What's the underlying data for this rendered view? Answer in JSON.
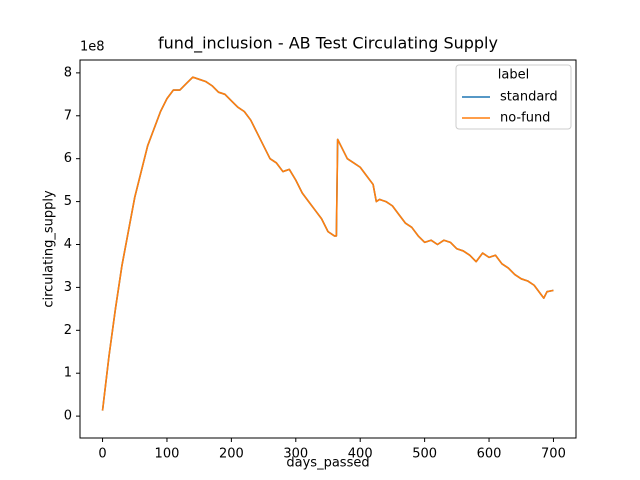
{
  "chart_data": {
    "type": "line",
    "title": "fund_inclusion - AB Test Circulating Supply",
    "x_label": "days_passed",
    "y_label": "circulating_supply",
    "y_offset_label": "1e8",
    "legend_title": "label",
    "legend": "upper right",
    "grid": false,
    "x": [
      0,
      10,
      20,
      30,
      40,
      50,
      60,
      70,
      80,
      90,
      100,
      110,
      120,
      130,
      140,
      150,
      160,
      170,
      180,
      190,
      200,
      210,
      220,
      230,
      240,
      250,
      260,
      270,
      280,
      290,
      300,
      310,
      320,
      330,
      340,
      350,
      360,
      363,
      365,
      370,
      380,
      390,
      400,
      410,
      420,
      425,
      430,
      440,
      450,
      460,
      470,
      480,
      490,
      500,
      510,
      520,
      530,
      540,
      550,
      560,
      570,
      580,
      590,
      600,
      610,
      620,
      630,
      640,
      650,
      660,
      670,
      680,
      685,
      690,
      700
    ],
    "series": [
      {
        "name": "standard",
        "color": "#1f77b4",
        "values": [
          0.13,
          1.4,
          2.5,
          3.5,
          4.3,
          5.1,
          5.7,
          6.3,
          6.7,
          7.1,
          7.4,
          7.6,
          7.6,
          7.75,
          7.9,
          7.85,
          7.8,
          7.7,
          7.55,
          7.5,
          7.35,
          7.2,
          7.1,
          6.9,
          6.6,
          6.3,
          6.0,
          5.9,
          5.7,
          5.75,
          5.5,
          5.2,
          5.0,
          4.8,
          4.6,
          4.3,
          4.2,
          4.2,
          6.45,
          6.3,
          6.0,
          5.9,
          5.8,
          5.6,
          5.4,
          5.0,
          5.05,
          5.0,
          4.9,
          4.7,
          4.5,
          4.4,
          4.2,
          4.05,
          4.1,
          4.0,
          4.1,
          4.05,
          3.9,
          3.85,
          3.75,
          3.6,
          3.8,
          3.7,
          3.75,
          3.55,
          3.45,
          3.3,
          3.2,
          3.15,
          3.05,
          2.85,
          2.75,
          2.9,
          2.93
        ]
      },
      {
        "name": "no-fund",
        "color": "#ff7f0e",
        "values": [
          0.13,
          1.4,
          2.5,
          3.5,
          4.3,
          5.1,
          5.7,
          6.3,
          6.7,
          7.1,
          7.4,
          7.6,
          7.6,
          7.75,
          7.9,
          7.85,
          7.8,
          7.7,
          7.55,
          7.5,
          7.35,
          7.2,
          7.1,
          6.9,
          6.6,
          6.3,
          6.0,
          5.9,
          5.7,
          5.75,
          5.5,
          5.2,
          5.0,
          4.8,
          4.6,
          4.3,
          4.2,
          4.2,
          6.45,
          6.3,
          6.0,
          5.9,
          5.8,
          5.6,
          5.4,
          5.0,
          5.05,
          5.0,
          4.9,
          4.7,
          4.5,
          4.4,
          4.2,
          4.05,
          4.1,
          4.0,
          4.1,
          4.05,
          3.9,
          3.85,
          3.75,
          3.6,
          3.8,
          3.7,
          3.75,
          3.55,
          3.45,
          3.3,
          3.2,
          3.15,
          3.05,
          2.85,
          2.75,
          2.9,
          2.93
        ]
      }
    ],
    "xlim": [
      -35,
      735
    ],
    "xticks": [
      0,
      100,
      200,
      300,
      400,
      500,
      600,
      700
    ],
    "ylim": [
      -0.51,
      8.3
    ],
    "yticks": [
      0,
      1,
      2,
      3,
      4,
      5,
      6,
      7,
      8
    ]
  }
}
